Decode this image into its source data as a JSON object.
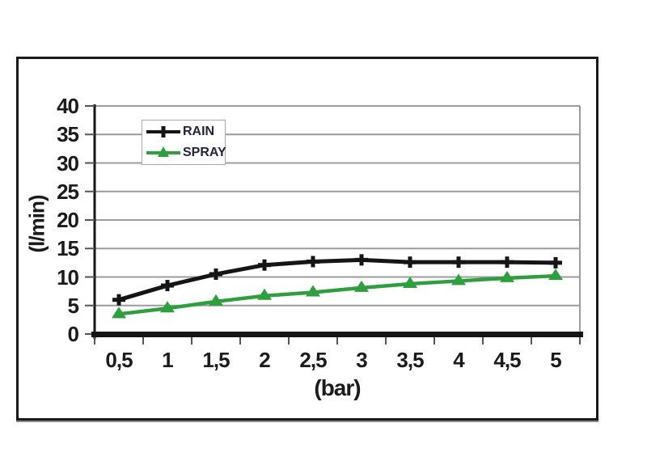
{
  "figure": {
    "frame": "scanned-chart-figure"
  },
  "chart_data": {
    "type": "line",
    "title": "",
    "xlabel": "(bar)",
    "ylabel": "(l/min)",
    "categories": [
      "0,5",
      "1",
      "1,5",
      "2",
      "2,5",
      "3",
      "3,5",
      "4",
      "4,5",
      "5"
    ],
    "x_numeric": [
      0.5,
      1,
      1.5,
      2,
      2.5,
      3,
      3.5,
      4,
      4.5,
      5
    ],
    "series": [
      {
        "name": "RAIN",
        "color": "#151515",
        "marker": "plus",
        "values": [
          6.0,
          8.5,
          10.5,
          12.1,
          12.7,
          13.0,
          12.6,
          12.6,
          12.6,
          12.5
        ]
      },
      {
        "name": "SPRAY",
        "color": "#2e9e3e",
        "marker": "triangle",
        "values": [
          3.5,
          4.5,
          5.7,
          6.7,
          7.3,
          8.1,
          8.8,
          9.3,
          9.8,
          10.2
        ]
      }
    ],
    "ylim": [
      0,
      40
    ],
    "y_ticks": [
      0,
      5,
      10,
      15,
      20,
      25,
      30,
      35,
      40
    ],
    "y_tick_labels": [
      "0",
      "5",
      "10",
      "15",
      "20",
      "25",
      "30",
      "35",
      "40"
    ],
    "grid": true,
    "legend_position": "top-left-inside",
    "colors": {
      "gridline": "#9c9c9c",
      "axis": "#151515",
      "tick": "#555555",
      "text": "#1b1b1b"
    }
  }
}
